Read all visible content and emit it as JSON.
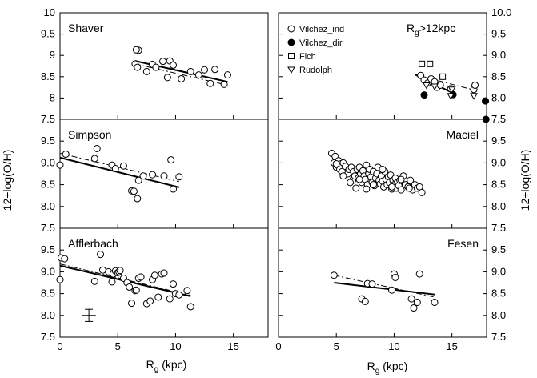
{
  "figure": {
    "y_label_left": "12+log(O/H)",
    "y_label_right": "12+log(O/H)",
    "x_label_left": "R",
    "x_label_left_sub": "g",
    "x_label_left_unit": " (kpc)",
    "x_label_right": "R",
    "x_label_right_sub": "g",
    "x_label_right_unit": " (kpc)"
  },
  "chart_data": [
    {
      "type": "scatter",
      "title": "Shaver",
      "column": 0,
      "row": 0,
      "xlim": [
        0,
        18
      ],
      "ylim": [
        7.5,
        10
      ],
      "y_ticks": [
        "7.5",
        "8",
        "8.5",
        "9",
        "9.5",
        "10"
      ],
      "series": [
        {
          "marker": "open-circle",
          "x": [
            6.5,
            6.8,
            6.6,
            6.7,
            7.5,
            8.0,
            8.3,
            8.9,
            9.3,
            9.5,
            9.8,
            10.5,
            11.3,
            12.0,
            12.5,
            13.0,
            13.4,
            14.2,
            14.5
          ],
          "y": [
            8.8,
            9.12,
            9.13,
            8.72,
            8.62,
            8.79,
            8.72,
            8.86,
            8.48,
            8.87,
            8.77,
            8.45,
            8.62,
            8.54,
            8.66,
            8.34,
            8.67,
            8.32,
            8.54
          ]
        }
      ],
      "fits": [
        {
          "style": "solid",
          "x": [
            6.5,
            14.5
          ],
          "y": [
            8.87,
            8.38
          ]
        },
        {
          "style": "dashed",
          "x": [
            6.5,
            14.5
          ],
          "y": [
            8.8,
            8.3
          ]
        }
      ]
    },
    {
      "type": "scatter",
      "title": "Simpson",
      "column": 0,
      "row": 1,
      "xlim": [
        0,
        18
      ],
      "ylim": [
        7.5,
        10
      ],
      "y_ticks": [
        "7.5",
        "8.0",
        "8.5",
        "9.0",
        "9.5"
      ],
      "series": [
        {
          "marker": "open-circle",
          "x": [
            0,
            0.5,
            3.0,
            3.2,
            4.5,
            4.8,
            5.5,
            6.2,
            6.4,
            6.7,
            6.8,
            7.2,
            8.0,
            9.0,
            9.6,
            9.8,
            10.3
          ],
          "y": [
            8.95,
            9.2,
            9.1,
            9.33,
            8.95,
            8.87,
            8.93,
            8.36,
            8.35,
            8.18,
            8.6,
            8.7,
            8.73,
            8.7,
            9.07,
            8.4,
            8.68
          ]
        }
      ],
      "fits": [
        {
          "style": "solid",
          "x": [
            0,
            10.3
          ],
          "y": [
            9.12,
            8.44
          ]
        },
        {
          "style": "dashed",
          "x": [
            0,
            10.3
          ],
          "y": [
            9.22,
            8.57
          ]
        }
      ]
    },
    {
      "type": "scatter",
      "title": "Afflerbach",
      "column": 0,
      "row": 2,
      "xlim": [
        0,
        18
      ],
      "ylim": [
        7.5,
        10
      ],
      "y_ticks": [
        "7.5",
        "8.0",
        "8.5",
        "9.0",
        "9.5"
      ],
      "error_bar": {
        "x": 2.5,
        "y": 8.0,
        "dx": 0.6,
        "dy": 0.14
      },
      "series": [
        {
          "marker": "open-circle",
          "x": [
            0,
            0.1,
            0.4,
            3.0,
            3.5,
            3.7,
            4.2,
            4.5,
            4.6,
            4.8,
            5.0,
            5.1,
            5.2,
            5.5,
            5.8,
            6.0,
            6.2,
            6.5,
            6.6,
            6.8,
            7.0,
            7.5,
            7.8,
            8.0,
            8.2,
            8.5,
            8.8,
            9.0,
            9.5,
            9.8,
            10.0,
            10.3,
            11.0,
            11.3
          ],
          "y": [
            8.82,
            9.32,
            9.3,
            8.78,
            9.4,
            9.04,
            9.0,
            8.77,
            8.95,
            9.02,
            8.98,
            9.0,
            9.03,
            8.85,
            8.75,
            8.65,
            8.28,
            8.57,
            8.58,
            8.85,
            8.88,
            8.27,
            8.33,
            8.82,
            8.92,
            8.42,
            8.95,
            8.97,
            8.38,
            8.72,
            8.5,
            8.47,
            8.57,
            8.2
          ]
        }
      ],
      "fits": [
        {
          "style": "solid",
          "x": [
            0,
            11.3
          ],
          "y": [
            9.14,
            8.44
          ]
        },
        {
          "style": "dashed",
          "x": [
            0,
            11.3
          ],
          "y": [
            9.18,
            8.46
          ]
        }
      ]
    },
    {
      "type": "scatter",
      "title": "R",
      "title_sub": "g",
      "title_suffix": ">12kpc",
      "column": 1,
      "row": 0,
      "xlim": [
        0,
        18
      ],
      "ylim": [
        7.5,
        10
      ],
      "y_ticks": [
        "7.5",
        "8.0",
        "8.5",
        "9.0",
        "9.5",
        "10.0"
      ],
      "legend": {
        "placement": "top-left",
        "entries": [
          {
            "label": "Vilchez_ind",
            "marker": "open-circle"
          },
          {
            "label": "Vilchez_dir",
            "marker": "filled-circle"
          },
          {
            "label": "Fich",
            "marker": "open-square"
          },
          {
            "label": "Rudolph",
            "marker": "open-triangle-down"
          }
        ]
      },
      "series": [
        {
          "name": "Vilchez_ind",
          "marker": "open-circle",
          "x": [
            12.3,
            12.6,
            12.9,
            13.2,
            13.5,
            13.7,
            14.0,
            14.9,
            16.9,
            17.0
          ],
          "y": [
            8.53,
            8.42,
            8.35,
            8.45,
            8.38,
            8.25,
            8.3,
            8.22,
            8.2,
            8.3
          ]
        },
        {
          "name": "Vilchez_dir",
          "marker": "filled-circle",
          "x": [
            12.6,
            15.1,
            17.9,
            17.95
          ],
          "y": [
            8.07,
            8.08,
            7.93,
            7.5
          ]
        },
        {
          "name": "Fich",
          "marker": "open-square",
          "x": [
            12.4,
            13.1,
            14.2
          ],
          "y": [
            8.8,
            8.8,
            8.5
          ]
        },
        {
          "name": "Rudolph",
          "marker": "open-triangle-down",
          "x": [
            12.8,
            13.5,
            14.9,
            15.0,
            16.9
          ],
          "y": [
            8.3,
            8.27,
            8.05,
            8.2,
            8.05
          ]
        }
      ],
      "fits": [
        {
          "style": "solid",
          "x": [
            11.8,
            15.2
          ],
          "y": [
            8.55,
            8.1
          ]
        },
        {
          "style": "dashed",
          "x": [
            11.8,
            17.0
          ],
          "y": [
            8.55,
            8.18
          ]
        }
      ]
    },
    {
      "type": "scatter",
      "title": "Maciel",
      "column": 1,
      "row": 1,
      "xlim": [
        0,
        18
      ],
      "ylim": [
        7.5,
        10
      ],
      "y_ticks": [
        "7.5",
        "8.0",
        "8.5",
        "9.0",
        "9.5"
      ],
      "series": [
        {
          "marker": "open-circle",
          "x": [
            4.6,
            4.8,
            4.9,
            5.0,
            5.1,
            5.2,
            5.3,
            5.4,
            5.5,
            5.6,
            5.8,
            6.0,
            6.1,
            6.3,
            6.4,
            6.5,
            6.6,
            6.7,
            6.8,
            6.9,
            7.0,
            7.1,
            7.2,
            7.3,
            7.4,
            7.5,
            7.6,
            7.7,
            7.8,
            7.9,
            8.0,
            8.1,
            8.2,
            8.3,
            8.4,
            8.5,
            8.6,
            8.7,
            8.8,
            8.9,
            9.0,
            9.1,
            9.2,
            9.3,
            9.4,
            9.5,
            9.6,
            9.7,
            9.8,
            9.9,
            10.0,
            10.1,
            10.2,
            10.3,
            10.4,
            10.5,
            10.6,
            10.8,
            11.0,
            11.2,
            11.4,
            11.6,
            11.8,
            12.0,
            12.2,
            12.4,
            5.0,
            5.6,
            6.2,
            7.0,
            7.6,
            8.2,
            9.0,
            9.8,
            10.6,
            11.3
          ],
          "y": [
            9.22,
            9.0,
            9.15,
            8.9,
            8.95,
            9.05,
            8.85,
            8.98,
            8.8,
            9.0,
            8.92,
            8.75,
            8.85,
            8.9,
            8.6,
            8.8,
            8.7,
            8.42,
            8.85,
            8.65,
            8.9,
            8.75,
            8.55,
            8.82,
            8.7,
            8.62,
            8.95,
            8.5,
            8.75,
            8.85,
            8.68,
            8.55,
            8.8,
            8.48,
            8.65,
            8.75,
            8.9,
            8.6,
            8.52,
            8.7,
            8.58,
            8.45,
            8.8,
            8.62,
            8.5,
            8.68,
            8.55,
            8.72,
            8.4,
            8.6,
            8.5,
            8.65,
            8.42,
            8.55,
            8.48,
            8.6,
            8.38,
            8.7,
            8.5,
            8.45,
            8.6,
            8.38,
            8.5,
            8.42,
            8.45,
            8.32,
            8.98,
            8.7,
            8.55,
            8.62,
            8.4,
            8.5,
            8.85,
            8.45,
            8.62,
            8.42
          ]
        }
      ],
      "fits": [
        {
          "style": "solid",
          "x": [
            4.6,
            12.4
          ],
          "y": [
            8.98,
            8.4
          ]
        },
        {
          "style": "dashed",
          "x": [
            4.6,
            12.4
          ],
          "y": [
            8.96,
            8.42
          ]
        }
      ]
    },
    {
      "type": "scatter",
      "title": "Fesen",
      "column": 1,
      "row": 2,
      "xlim": [
        0,
        18
      ],
      "ylim": [
        7.5,
        10
      ],
      "y_ticks": [
        "7.5",
        "8.0",
        "8.5",
        "9.0",
        "9.5"
      ],
      "series": [
        {
          "marker": "open-circle",
          "x": [
            4.8,
            7.2,
            7.5,
            7.7,
            8.1,
            9.8,
            10.0,
            10.1,
            11.5,
            11.7,
            12.0,
            12.2,
            13.5
          ],
          "y": [
            8.92,
            8.38,
            8.32,
            8.73,
            8.72,
            8.58,
            8.95,
            8.87,
            8.38,
            8.17,
            8.3,
            8.95,
            8.3
          ]
        }
      ],
      "fits": [
        {
          "style": "solid",
          "x": [
            4.8,
            13.5
          ],
          "y": [
            8.75,
            8.48
          ]
        },
        {
          "style": "dashed",
          "x": [
            4.8,
            13.5
          ],
          "y": [
            8.92,
            8.42
          ]
        }
      ]
    }
  ],
  "x_ticks": {
    "values": [
      0,
      5,
      10,
      15
    ],
    "labels": [
      "0",
      "5",
      "10",
      "15"
    ]
  }
}
